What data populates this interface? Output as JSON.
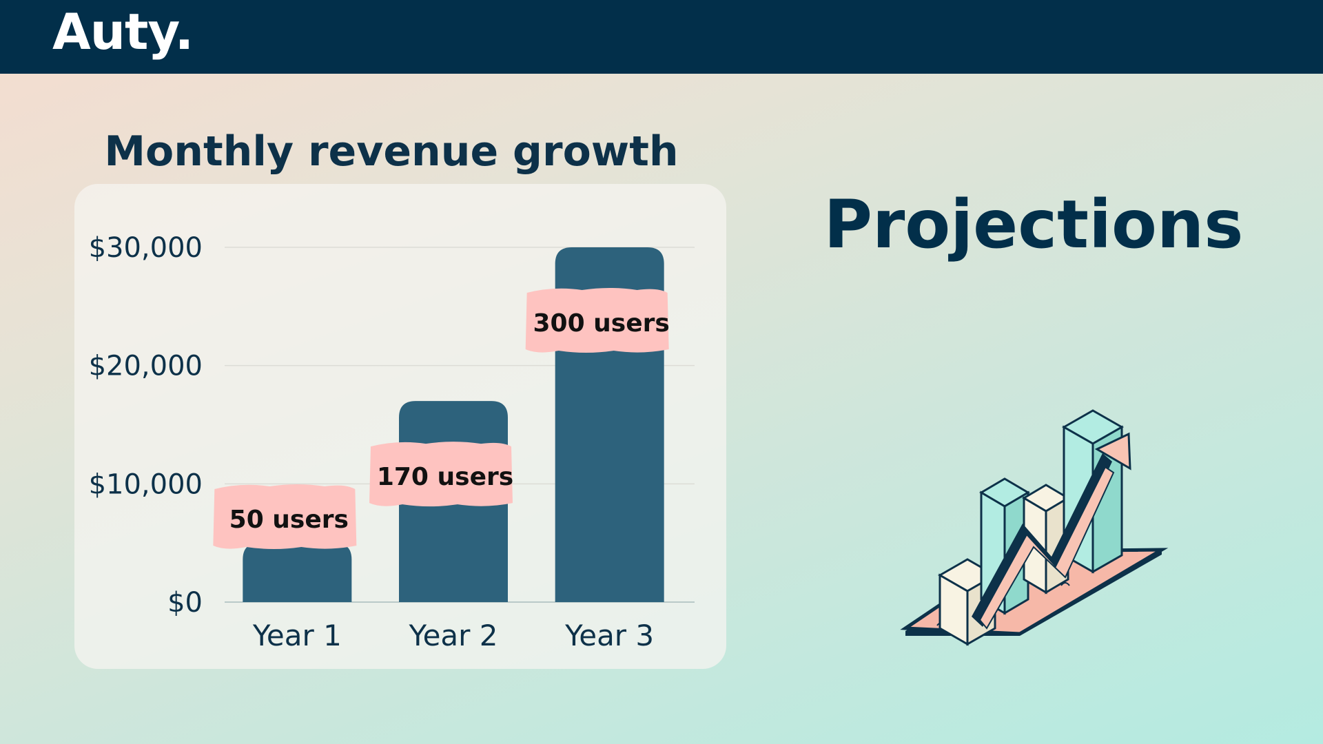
{
  "brand": {
    "logo_text": "Auty."
  },
  "slide": {
    "heading": "Projections"
  },
  "colors": {
    "header_bg": "#022f4a",
    "bar": "#2d627c",
    "label_patch": "#fec3c0",
    "text_dark": "#0d3149"
  },
  "chart_data": {
    "type": "bar",
    "title": "Monthly revenue growth",
    "xlabel": "",
    "ylabel": "",
    "categories": [
      "Year 1",
      "Year 2",
      "Year 3"
    ],
    "values": [
      5000,
      17000,
      30000
    ],
    "annotations": [
      "50 users",
      "170 users",
      "300 users"
    ],
    "y_ticks": [
      "$0",
      "$10,000",
      "$20,000",
      "$30,000"
    ],
    "ylim": [
      0,
      30000
    ],
    "grid": true,
    "legend": "none"
  },
  "illustration": {
    "icon": "growth-chart-illustration-icon"
  }
}
